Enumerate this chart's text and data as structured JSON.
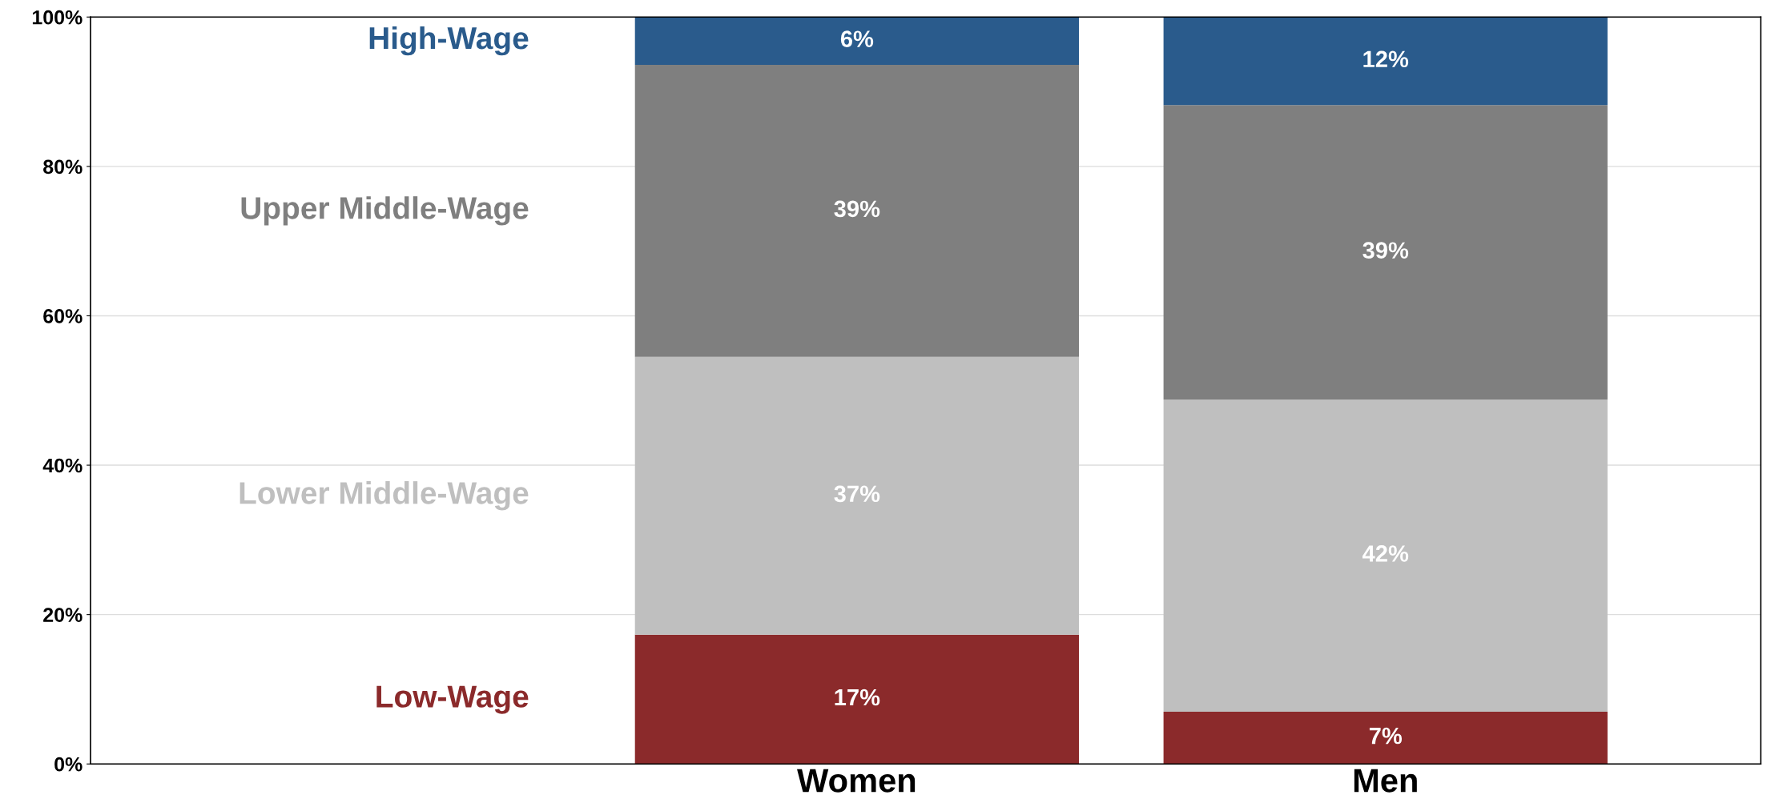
{
  "chart_data": {
    "type": "bar",
    "stacked": true,
    "categories": [
      null,
      "Women",
      "Men"
    ],
    "series": [
      {
        "name": "Low-Wage",
        "color": "#8b2a2b",
        "values": [
          null,
          17.3,
          7.0
        ],
        "value_labels": [
          null,
          "17%",
          "7%"
        ]
      },
      {
        "name": "Lower Middle-Wage",
        "color": "#bfbfbf",
        "values": [
          null,
          37.2,
          41.8
        ],
        "value_labels": [
          null,
          "37%",
          "42%"
        ]
      },
      {
        "name": "Upper Middle-Wage",
        "color": "#7f7f7f",
        "values": [
          null,
          39.1,
          39.4
        ],
        "value_labels": [
          null,
          "39%",
          "39%"
        ]
      },
      {
        "name": "High-Wage",
        "color": "#2a5b8c",
        "values": [
          null,
          6.4,
          11.8
        ],
        "value_labels": [
          null,
          "6%",
          "12%"
        ]
      }
    ],
    "ylim": [
      0,
      100
    ],
    "yticks": [
      {
        "value": 0,
        "label": "0%"
      },
      {
        "value": 20,
        "label": "20%"
      },
      {
        "value": 40,
        "label": "40%"
      },
      {
        "value": 60,
        "label": "60%"
      },
      {
        "value": 80,
        "label": "80%"
      },
      {
        "value": 100,
        "label": "100%"
      }
    ],
    "grid": "y",
    "legend": false
  }
}
